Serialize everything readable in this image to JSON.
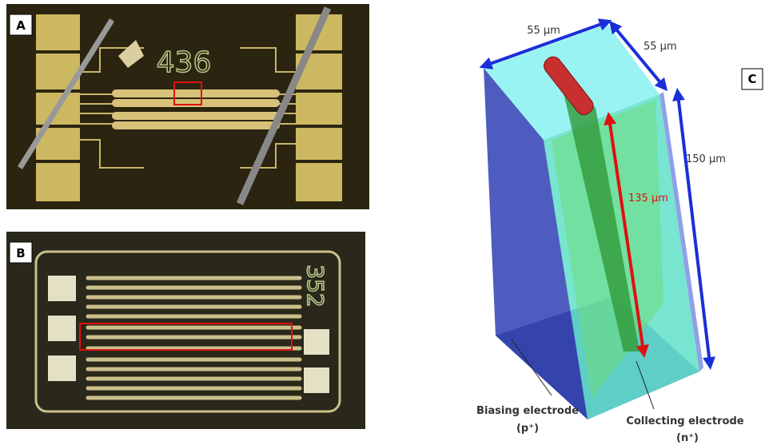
{
  "panels": [
    {
      "label": "A",
      "chip_number": "436"
    },
    {
      "label": "B",
      "chip_number": "352"
    },
    {
      "label": "C"
    }
  ],
  "diagram": {
    "dimensions": [
      "55 µm",
      "55 µm",
      "150 µm",
      "135 µm"
    ],
    "electrodes": [
      {
        "name": "Biasing electrode",
        "type": "(p⁺)"
      },
      {
        "name": "Collecting electrode",
        "type": "(n⁺)"
      }
    ]
  }
}
